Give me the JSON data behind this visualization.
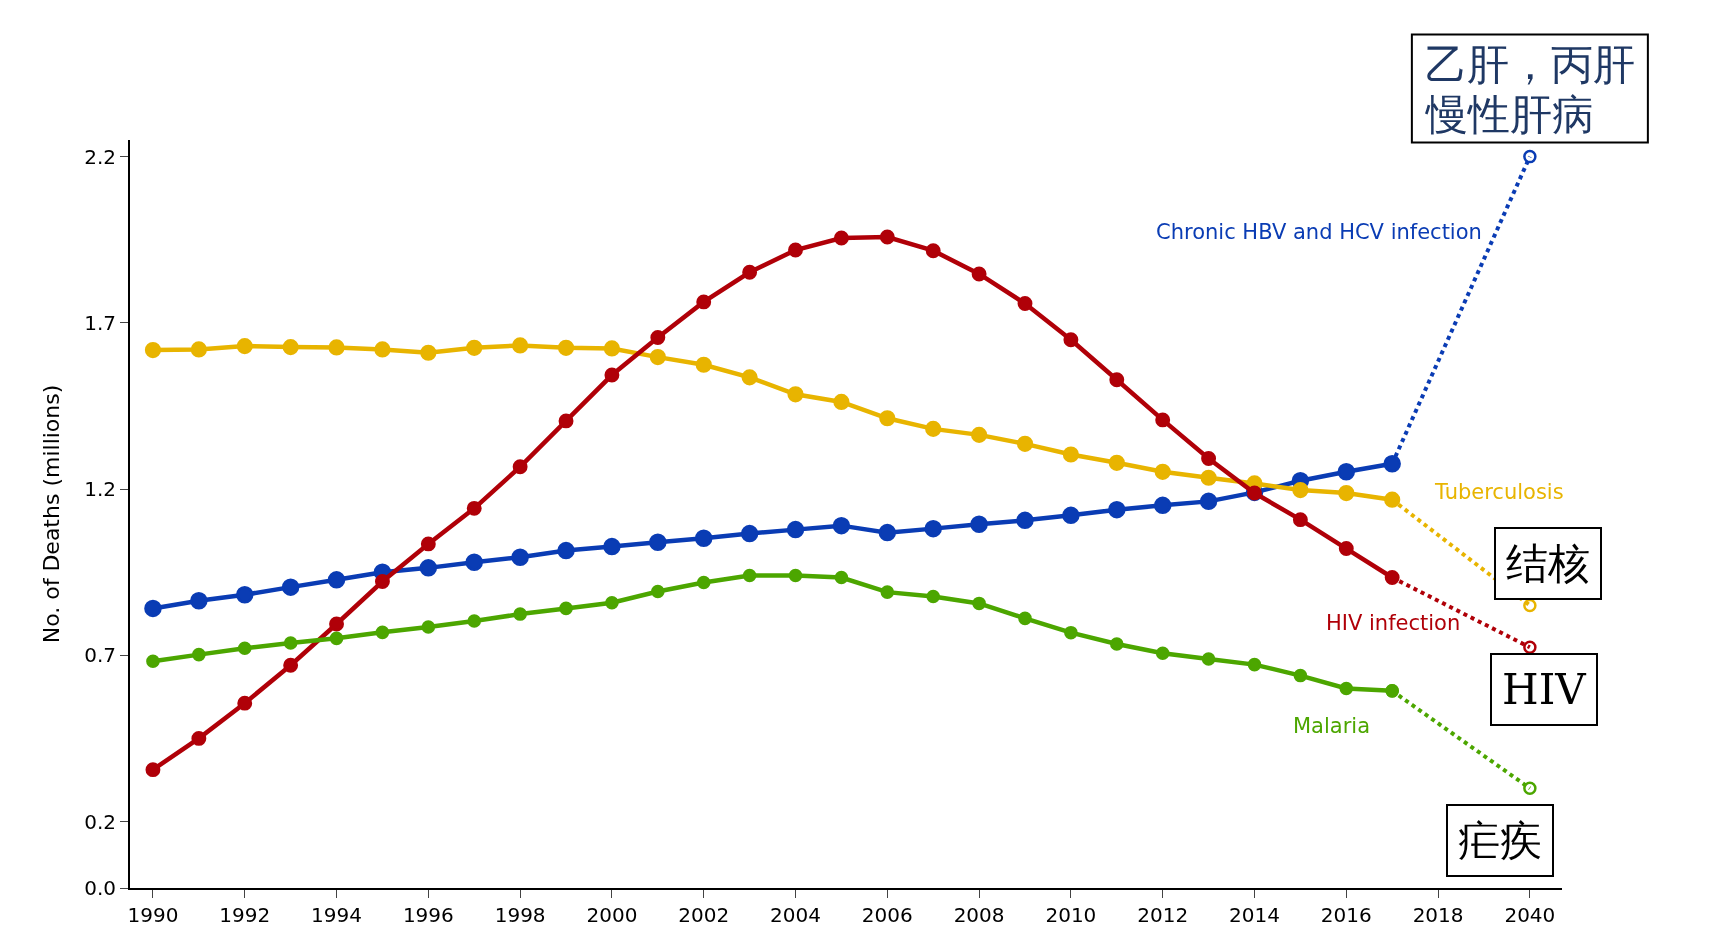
{
  "chart_data": {
    "type": "line",
    "ylabel": "No. of Deaths (millions)",
    "categories": [
      "1990",
      null,
      "1992",
      null,
      "1994",
      null,
      "1996",
      null,
      "1998",
      null,
      "2000",
      null,
      "2002",
      null,
      "2004",
      null,
      "2006",
      null,
      "2008",
      null,
      "2010",
      null,
      "2012",
      null,
      "2014",
      null,
      "2016",
      null,
      "2018",
      null,
      "2040"
    ],
    "series": [
      {
        "name": "Chronic HBV and HCV infection",
        "color": "#0a3cb4",
        "marker": "circle",
        "line_style": "solid",
        "values": [
          0.841,
          0.864,
          0.882,
          0.905,
          0.927,
          0.95,
          0.963,
          0.98,
          0.995,
          1.015,
          1.027,
          1.04,
          1.052,
          1.066,
          1.078,
          1.09,
          1.069,
          1.081,
          1.094,
          1.106,
          1.121,
          1.138,
          1.151,
          1.163,
          1.19,
          1.225,
          1.252,
          1.276,
          null,
          null,
          null
        ]
      },
      {
        "name": "Tuberculosis",
        "color": "#e8b400",
        "marker": "circle",
        "line_style": "solid",
        "values": [
          1.618,
          1.62,
          1.63,
          1.627,
          1.626,
          1.62,
          1.61,
          1.625,
          1.632,
          1.625,
          1.623,
          1.597,
          1.574,
          1.536,
          1.485,
          1.462,
          1.413,
          1.381,
          1.363,
          1.336,
          1.304,
          1.279,
          1.252,
          1.234,
          1.217,
          1.197,
          1.188,
          1.168,
          null,
          null,
          null
        ]
      },
      {
        "name": "HIV infection",
        "color": "#b00008",
        "marker": "circle",
        "line_style": "solid",
        "values": [
          0.356,
          0.45,
          0.556,
          0.67,
          0.794,
          0.922,
          1.035,
          1.142,
          1.267,
          1.405,
          1.543,
          1.656,
          1.763,
          1.852,
          1.919,
          1.955,
          1.958,
          1.917,
          1.847,
          1.758,
          1.649,
          1.529,
          1.408,
          1.292,
          1.188,
          1.108,
          1.021,
          0.934,
          null,
          null,
          null
        ]
      },
      {
        "name": "Malaria",
        "color": "#4ca600",
        "marker": "circle",
        "line_style": "solid",
        "values": [
          0.682,
          0.702,
          0.721,
          0.737,
          0.751,
          0.769,
          0.785,
          0.803,
          0.824,
          0.841,
          0.858,
          0.892,
          0.919,
          0.94,
          0.94,
          0.934,
          0.89,
          0.877,
          0.856,
          0.811,
          0.768,
          0.734,
          0.706,
          0.689,
          0.672,
          0.639,
          0.6,
          0.593,
          null,
          null,
          null
        ]
      },
      {
        "color": "#0a3cb4",
        "marker": "circle",
        "line_style": "dotted",
        "values": [
          null,
          null,
          null,
          null,
          null,
          null,
          null,
          null,
          null,
          null,
          null,
          null,
          null,
          null,
          null,
          null,
          null,
          null,
          null,
          null,
          null,
          null,
          null,
          null,
          null,
          null,
          null,
          1.276,
          null,
          null,
          2.2
        ]
      },
      {
        "color": "#e8b400",
        "marker": "circle",
        "line_style": "dotted",
        "values": [
          null,
          null,
          null,
          null,
          null,
          null,
          null,
          null,
          null,
          null,
          null,
          null,
          null,
          null,
          null,
          null,
          null,
          null,
          null,
          null,
          null,
          null,
          null,
          null,
          null,
          null,
          null,
          1.168,
          null,
          null,
          0.85
        ]
      },
      {
        "color": "#b00008",
        "marker": "circle",
        "line_style": "dotted",
        "values": [
          null,
          null,
          null,
          null,
          null,
          null,
          null,
          null,
          null,
          null,
          null,
          null,
          null,
          null,
          null,
          null,
          null,
          null,
          null,
          null,
          null,
          null,
          null,
          null,
          null,
          null,
          null,
          0.934,
          null,
          null,
          0.724
        ]
      },
      {
        "color": "#4ca600",
        "marker": "circle",
        "line_style": "dotted",
        "values": [
          null,
          null,
          null,
          null,
          null,
          null,
          null,
          null,
          null,
          null,
          null,
          null,
          null,
          null,
          null,
          null,
          null,
          null,
          null,
          null,
          null,
          null,
          null,
          null,
          null,
          null,
          null,
          0.593,
          null,
          null,
          0.3
        ]
      }
    ],
    "ylim": [
      0,
      2.25
    ],
    "yticks": [
      {
        "value": 0,
        "label": "0.0"
      },
      0.2,
      0.7,
      1.2,
      1.7,
      2.2
    ],
    "grid": false,
    "legend": false,
    "annotations": [
      {
        "text": "乙肝，丙肝",
        "x": "2040",
        "y": 2.2
      },
      {
        "text": "慢性肝病",
        "x": "2040",
        "y": 2.2
      },
      {
        "text": "结核",
        "x": "2040",
        "y": 0.85
      },
      {
        "text": "HIV",
        "x": "2040",
        "y": 0.724
      },
      {
        "text": "疟疾",
        "x": "2040",
        "y": 0.3
      }
    ]
  }
}
